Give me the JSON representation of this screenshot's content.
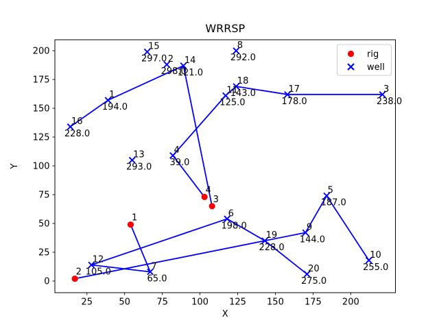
{
  "window": {
    "kind": "matplotlib-figure"
  },
  "title": "WRRSP",
  "axes": {
    "xlabel": "X",
    "ylabel": "Y",
    "x_ticks": [
      25,
      50,
      75,
      100,
      125,
      150,
      175,
      200
    ],
    "y_ticks": [
      0,
      25,
      50,
      75,
      100,
      125,
      150,
      175,
      200
    ]
  },
  "legend": {
    "position": "upper right",
    "entries": [
      {
        "label": "rig",
        "marker": "circle",
        "color": "#ff0000"
      },
      {
        "label": "well",
        "marker": "x",
        "color": "#0000ff"
      }
    ]
  },
  "colors": {
    "rig": "#ff0000",
    "well": "#0000ff",
    "route": "#0000ff",
    "text": "#000000",
    "spine": "#000000",
    "legend_border": "#cccccc",
    "background": "#ffffff"
  },
  "chart_data": {
    "type": "scatter",
    "title": "WRRSP",
    "xlabel": "X",
    "ylabel": "Y",
    "xlim": [
      4,
      230
    ],
    "ylim": [
      -10,
      210
    ],
    "grid": false,
    "x_ticks": [
      25,
      50,
      75,
      100,
      125,
      150,
      175,
      200
    ],
    "y_ticks": [
      0,
      25,
      50,
      75,
      100,
      125,
      150,
      175,
      200
    ],
    "legend_entries": [
      "rig",
      "well"
    ],
    "rigs": [
      {
        "id": 1,
        "x": 54,
        "y": 49
      },
      {
        "id": 2,
        "x": 17,
        "y": 2
      },
      {
        "id": 3,
        "x": 108,
        "y": 65
      },
      {
        "id": 4,
        "x": 103,
        "y": 73
      }
    ],
    "wells": [
      {
        "id": 1,
        "x": 39,
        "y": 157,
        "value": "194.0"
      },
      {
        "id": 2,
        "x": 78,
        "y": 188,
        "value": "298.0"
      },
      {
        "id": 3,
        "x": 221,
        "y": 162,
        "value": "238.0"
      },
      {
        "id": 4,
        "x": 82,
        "y": 109,
        "value": "39.0"
      },
      {
        "id": 5,
        "x": 184,
        "y": 74,
        "value": "187.0"
      },
      {
        "id": 6,
        "x": 118,
        "y": 54,
        "value": "198.0"
      },
      {
        "id": 7,
        "x": 67,
        "y": 8,
        "value": "65.0"
      },
      {
        "id": 8,
        "x": 124,
        "y": 200,
        "value": "292.0"
      },
      {
        "id": 9,
        "x": 170,
        "y": 42,
        "value": "144.0"
      },
      {
        "id": 10,
        "x": 212,
        "y": 18,
        "value": "255.0"
      },
      {
        "id": 11,
        "x": 117,
        "y": 161,
        "value": "125.0"
      },
      {
        "id": 12,
        "x": 28,
        "y": 14,
        "value": "105.0"
      },
      {
        "id": 13,
        "x": 55,
        "y": 105,
        "value": "293.0"
      },
      {
        "id": 14,
        "x": 89,
        "y": 187,
        "value": "121.0"
      },
      {
        "id": 15,
        "x": 65,
        "y": 199,
        "value": "297.0"
      },
      {
        "id": 16,
        "x": 14,
        "y": 134,
        "value": "228.0"
      },
      {
        "id": 17,
        "x": 158,
        "y": 162,
        "value": "178.0"
      },
      {
        "id": 18,
        "x": 124,
        "y": 169,
        "value": "143.0"
      },
      {
        "id": 19,
        "x": 143,
        "y": 35,
        "value": "228.0"
      },
      {
        "id": 20,
        "x": 171,
        "y": 6,
        "value": "275.0"
      }
    ],
    "routes": [
      {
        "rig": 1,
        "wells": [
          7,
          12,
          6,
          19,
          20
        ]
      },
      {
        "rig": 2,
        "wells": [
          9,
          5,
          10
        ]
      },
      {
        "rig": 3,
        "wells": [
          14,
          1,
          16
        ]
      },
      {
        "rig": 4,
        "wells": [
          4,
          11,
          18,
          17,
          3
        ]
      }
    ],
    "unassigned_wells": [
      2,
      8,
      13,
      15
    ]
  }
}
